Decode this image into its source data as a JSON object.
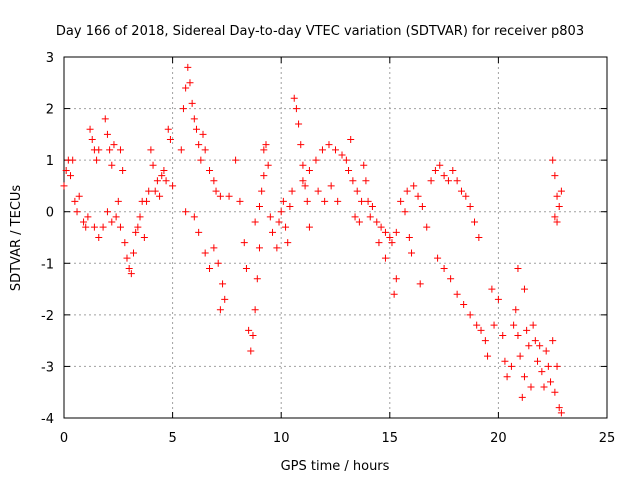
{
  "chart_data": {
    "type": "scatter",
    "title": "Day 166 of 2018, Sidereal Day-to-day VTEC variation (SDTVAR) for receiver p803",
    "xlabel": "GPS time / hours",
    "ylabel": "SDTVAR / TECUs",
    "xlim": [
      0,
      25
    ],
    "ylim": [
      -4,
      3
    ],
    "xticks": [
      0,
      5,
      10,
      15,
      20,
      25
    ],
    "yticks": [
      -4,
      -3,
      -2,
      -1,
      0,
      1,
      2,
      3
    ],
    "grid": true,
    "marker": "+",
    "color": "#ff0000",
    "series": [
      {
        "name": "SDTVAR",
        "points": [
          [
            0.0,
            0.5
          ],
          [
            0.1,
            0.8
          ],
          [
            0.2,
            1.0
          ],
          [
            0.3,
            0.7
          ],
          [
            0.4,
            1.0
          ],
          [
            0.5,
            0.2
          ],
          [
            0.6,
            0.0
          ],
          [
            0.7,
            0.3
          ],
          [
            0.9,
            -0.2
          ],
          [
            1.0,
            -0.3
          ],
          [
            1.1,
            -0.1
          ],
          [
            1.2,
            1.6
          ],
          [
            1.3,
            1.4
          ],
          [
            1.4,
            1.2
          ],
          [
            1.5,
            1.0
          ],
          [
            1.6,
            1.2
          ],
          [
            1.4,
            -0.3
          ],
          [
            1.6,
            -0.5
          ],
          [
            1.8,
            -0.3
          ],
          [
            1.9,
            1.8
          ],
          [
            2.0,
            1.5
          ],
          [
            2.1,
            1.2
          ],
          [
            2.2,
            0.9
          ],
          [
            2.3,
            1.3
          ],
          [
            2.0,
            0.0
          ],
          [
            2.2,
            -0.2
          ],
          [
            2.4,
            -0.1
          ],
          [
            2.5,
            0.2
          ],
          [
            2.6,
            1.2
          ],
          [
            2.7,
            0.8
          ],
          [
            2.6,
            -0.3
          ],
          [
            2.8,
            -0.6
          ],
          [
            2.9,
            -0.9
          ],
          [
            3.0,
            -1.1
          ],
          [
            3.1,
            -1.2
          ],
          [
            3.2,
            -0.8
          ],
          [
            3.3,
            -0.4
          ],
          [
            3.4,
            -0.3
          ],
          [
            3.5,
            -0.1
          ],
          [
            3.6,
            0.2
          ],
          [
            3.7,
            -0.5
          ],
          [
            3.8,
            0.2
          ],
          [
            3.9,
            0.4
          ],
          [
            4.0,
            1.2
          ],
          [
            4.1,
            0.9
          ],
          [
            4.2,
            0.4
          ],
          [
            4.3,
            0.6
          ],
          [
            4.4,
            0.3
          ],
          [
            4.5,
            0.7
          ],
          [
            4.6,
            0.8
          ],
          [
            4.7,
            0.6
          ],
          [
            4.8,
            1.6
          ],
          [
            4.9,
            1.4
          ],
          [
            5.0,
            0.5
          ],
          [
            5.4,
            1.2
          ],
          [
            5.5,
            2.0
          ],
          [
            5.6,
            2.4
          ],
          [
            5.7,
            2.8
          ],
          [
            5.8,
            2.5
          ],
          [
            5.9,
            2.1
          ],
          [
            6.0,
            1.8
          ],
          [
            6.1,
            1.6
          ],
          [
            6.2,
            1.3
          ],
          [
            6.3,
            1.0
          ],
          [
            6.4,
            1.5
          ],
          [
            6.5,
            1.2
          ],
          [
            6.7,
            0.8
          ],
          [
            6.9,
            0.6
          ],
          [
            7.0,
            0.4
          ],
          [
            7.2,
            0.3
          ],
          [
            5.6,
            0.0
          ],
          [
            6.0,
            -0.1
          ],
          [
            6.2,
            -0.4
          ],
          [
            6.5,
            -0.8
          ],
          [
            6.7,
            -1.1
          ],
          [
            6.9,
            -0.7
          ],
          [
            7.1,
            -1.0
          ],
          [
            7.3,
            -1.4
          ],
          [
            7.4,
            -1.7
          ],
          [
            7.2,
            -1.9
          ],
          [
            7.6,
            0.3
          ],
          [
            7.9,
            1.0
          ],
          [
            8.1,
            0.2
          ],
          [
            8.3,
            -0.6
          ],
          [
            8.4,
            -1.1
          ],
          [
            8.5,
            -2.3
          ],
          [
            8.6,
            -2.7
          ],
          [
            8.7,
            -2.4
          ],
          [
            8.8,
            -1.9
          ],
          [
            8.9,
            -1.3
          ],
          [
            9.0,
            -0.7
          ],
          [
            8.8,
            -0.2
          ],
          [
            9.0,
            0.1
          ],
          [
            9.1,
            0.4
          ],
          [
            9.2,
            0.7
          ],
          [
            9.3,
            1.3
          ],
          [
            9.2,
            1.2
          ],
          [
            9.4,
            0.9
          ],
          [
            9.5,
            -0.1
          ],
          [
            9.6,
            -0.4
          ],
          [
            9.8,
            -0.7
          ],
          [
            9.9,
            -0.2
          ],
          [
            10.0,
            0.0
          ],
          [
            10.1,
            0.2
          ],
          [
            10.2,
            -0.3
          ],
          [
            10.3,
            -0.6
          ],
          [
            10.4,
            0.1
          ],
          [
            10.5,
            0.4
          ],
          [
            10.6,
            2.2
          ],
          [
            10.7,
            2.0
          ],
          [
            10.8,
            1.7
          ],
          [
            10.9,
            1.3
          ],
          [
            11.0,
            0.9
          ],
          [
            11.1,
            0.5
          ],
          [
            11.2,
            0.2
          ],
          [
            11.3,
            -0.3
          ],
          [
            11.0,
            0.6
          ],
          [
            11.3,
            0.8
          ],
          [
            11.6,
            1.0
          ],
          [
            11.9,
            1.2
          ],
          [
            12.2,
            1.3
          ],
          [
            12.5,
            1.2
          ],
          [
            12.8,
            1.1
          ],
          [
            13.0,
            1.0
          ],
          [
            11.7,
            0.4
          ],
          [
            12.0,
            0.2
          ],
          [
            12.3,
            0.5
          ],
          [
            12.6,
            0.2
          ],
          [
            13.1,
            0.8
          ],
          [
            13.2,
            1.4
          ],
          [
            13.3,
            0.6
          ],
          [
            13.5,
            0.4
          ],
          [
            13.6,
            -0.2
          ],
          [
            13.7,
            0.2
          ],
          [
            13.4,
            -0.1
          ],
          [
            13.8,
            0.9
          ],
          [
            13.9,
            0.6
          ],
          [
            14.0,
            0.2
          ],
          [
            14.1,
            -0.1
          ],
          [
            14.2,
            0.1
          ],
          [
            14.4,
            -0.2
          ],
          [
            14.6,
            -0.3
          ],
          [
            14.8,
            -0.4
          ],
          [
            15.0,
            -0.5
          ],
          [
            14.5,
            -0.6
          ],
          [
            14.8,
            -0.9
          ],
          [
            15.1,
            -0.6
          ],
          [
            15.3,
            -0.4
          ],
          [
            15.5,
            0.2
          ],
          [
            15.7,
            0.0
          ],
          [
            15.9,
            -0.5
          ],
          [
            16.0,
            -0.8
          ],
          [
            15.8,
            0.4
          ],
          [
            16.1,
            0.5
          ],
          [
            16.3,
            0.3
          ],
          [
            16.5,
            0.1
          ],
          [
            16.7,
            -0.3
          ],
          [
            16.9,
            0.6
          ],
          [
            17.1,
            0.8
          ],
          [
            17.3,
            0.9
          ],
          [
            17.5,
            0.7
          ],
          [
            17.7,
            0.6
          ],
          [
            17.9,
            0.8
          ],
          [
            18.1,
            0.6
          ],
          [
            18.3,
            0.4
          ],
          [
            18.5,
            0.3
          ],
          [
            18.7,
            0.1
          ],
          [
            18.9,
            -0.2
          ],
          [
            19.1,
            -0.5
          ],
          [
            17.2,
            -0.9
          ],
          [
            17.5,
            -1.1
          ],
          [
            17.8,
            -1.3
          ],
          [
            18.1,
            -1.6
          ],
          [
            18.4,
            -1.8
          ],
          [
            18.7,
            -2.0
          ],
          [
            19.0,
            -2.2
          ],
          [
            19.2,
            -2.3
          ],
          [
            19.4,
            -2.5
          ],
          [
            19.5,
            -2.8
          ],
          [
            19.7,
            -1.5
          ],
          [
            19.8,
            -2.2
          ],
          [
            20.0,
            -1.7
          ],
          [
            20.2,
            -2.4
          ],
          [
            20.3,
            -2.9
          ],
          [
            20.4,
            -3.2
          ],
          [
            20.6,
            -3.0
          ],
          [
            20.7,
            -2.2
          ],
          [
            20.8,
            -1.9
          ],
          [
            20.9,
            -2.4
          ],
          [
            21.0,
            -2.8
          ],
          [
            21.1,
            -3.6
          ],
          [
            21.2,
            -3.2
          ],
          [
            21.3,
            -2.3
          ],
          [
            21.4,
            -2.6
          ],
          [
            21.5,
            -3.4
          ],
          [
            21.6,
            -2.2
          ],
          [
            21.7,
            -2.5
          ],
          [
            21.8,
            -2.9
          ],
          [
            21.9,
            -2.6
          ],
          [
            22.0,
            -3.1
          ],
          [
            22.1,
            -3.4
          ],
          [
            22.2,
            -2.7
          ],
          [
            22.3,
            -3.0
          ],
          [
            22.4,
            -3.3
          ],
          [
            22.5,
            -2.5
          ],
          [
            22.6,
            -3.5
          ],
          [
            22.7,
            -3.0
          ],
          [
            22.8,
            -3.8
          ],
          [
            22.9,
            -3.9
          ],
          [
            22.5,
            1.0
          ],
          [
            22.6,
            0.7
          ],
          [
            22.7,
            0.3
          ],
          [
            22.8,
            0.1
          ],
          [
            22.9,
            0.4
          ],
          [
            22.6,
            -0.1
          ],
          [
            22.7,
            -0.2
          ],
          [
            15.2,
            -1.6
          ],
          [
            15.3,
            -1.3
          ],
          [
            16.4,
            -1.4
          ],
          [
            21.2,
            -1.5
          ],
          [
            20.9,
            -1.1
          ]
        ]
      }
    ]
  }
}
